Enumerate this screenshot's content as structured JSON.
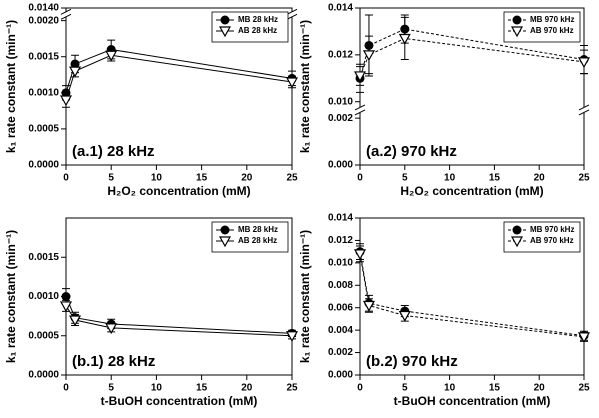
{
  "chart_data": [
    {
      "type": "line",
      "annotation": "(a.1) 28 kHz",
      "x_label": "H₂O₂ concentration (mM)",
      "y_label": "k₁ rate constant (min⁻¹)",
      "x": [
        0,
        1,
        5,
        25
      ],
      "xlim": [
        0,
        25
      ],
      "xticks": [
        0,
        5,
        10,
        15,
        20,
        25
      ],
      "ylim": [
        0,
        0.014
      ],
      "yticks": [
        {
          "value": 0,
          "label": "0.0000"
        },
        {
          "value": 0.0005,
          "label": "0.0005"
        },
        {
          "value": 0.001,
          "label": "0.0010"
        },
        {
          "value": 0.0015,
          "label": "0.0015"
        },
        {
          "value": 0.002,
          "label": "0.0020"
        },
        {
          "value": 0.014,
          "label": "0.0140"
        }
      ],
      "legend": "upper right",
      "line_style": "solid",
      "series": [
        {
          "name": "MB 28 kHz",
          "color": "#000000",
          "marker": "circle",
          "values": [
            0.001,
            0.0014,
            0.0016,
            0.0012
          ],
          "errors": [
            0.0001,
            0.00012,
            0.00013,
            0.0001
          ]
        },
        {
          "name": "AB 28 kHz",
          "color": "#000000",
          "marker": "triangle-down",
          "values": [
            0.0009,
            0.0013,
            0.00152,
            0.00115
          ],
          "errors": [
            0.0001,
            8e-05,
            8e-05,
            8e-05
          ]
        }
      ]
    },
    {
      "type": "line",
      "annotation": "(a.2) 970 kHz",
      "x_label": "H₂O₂ concentration (mM)",
      "y_label": "k₁ rate constant (min⁻¹)",
      "x": [
        0,
        1,
        5,
        25
      ],
      "xlim": [
        0,
        25
      ],
      "xticks": [
        0,
        5,
        10,
        15,
        20,
        25
      ],
      "ylim": [
        0,
        0.014
      ],
      "yticks": [
        {
          "value": 0,
          "label": "0.000"
        },
        {
          "value": 0.002,
          "label": "0.002"
        },
        {
          "value": 0.01,
          "label": "0.010"
        },
        {
          "value": 0.012,
          "label": "0.012"
        },
        {
          "value": 0.014,
          "label": "0.014"
        }
      ],
      "legend": "upper right",
      "line_style": "dashed",
      "series": [
        {
          "name": "MB 970 kHz",
          "color": "#000000",
          "marker": "circle",
          "values": [
            0.011,
            0.0124,
            0.0131,
            0.0118
          ],
          "errors": [
            0.0006,
            0.0013,
            0.0006,
            0.0006
          ]
        },
        {
          "name": "AB 970 kHz",
          "color": "#000000",
          "marker": "triangle-down",
          "values": [
            0.0111,
            0.012,
            0.0127,
            0.0117
          ],
          "errors": [
            0.0004,
            0.0008,
            0.0009,
            0.0005
          ]
        }
      ]
    },
    {
      "type": "line",
      "annotation": "(b.1) 28 kHz",
      "x_label": "t-BuOH concentration (mM)",
      "y_label": "k₁ rate constant (min⁻¹)",
      "x": [
        0,
        1,
        5,
        25
      ],
      "xlim": [
        0,
        25
      ],
      "xticks": [
        0,
        5,
        10,
        15,
        20,
        25
      ],
      "ylim": [
        0,
        0.002
      ],
      "yticks": [
        {
          "value": 0,
          "label": "0.0000"
        },
        {
          "value": 0.0005,
          "label": "0.0005"
        },
        {
          "value": 0.001,
          "label": "0.0010"
        },
        {
          "value": 0.0015,
          "label": "0.0015"
        }
      ],
      "legend": "upper right",
      "line_style": "solid",
      "series": [
        {
          "name": "MB 28 kHz",
          "color": "#000000",
          "marker": "circle",
          "values": [
            0.001,
            0.00073,
            0.00065,
            0.00053
          ],
          "errors": [
            0.0001,
            7e-05,
            6e-05,
            4e-05
          ]
        },
        {
          "name": "AB 28 kHz",
          "color": "#000000",
          "marker": "triangle-down",
          "values": [
            0.00088,
            0.0007,
            0.0006,
            0.0005
          ],
          "errors": [
            7e-05,
            7e-05,
            5e-05,
            4e-05
          ]
        }
      ]
    },
    {
      "type": "line",
      "annotation": "(b.2) 970 kHz",
      "x_label": "t-BuOH concentration (mM)",
      "y_label": "k₁ rate constant (min⁻¹)",
      "x": [
        0,
        1,
        5,
        25
      ],
      "xlim": [
        0,
        25
      ],
      "xticks": [
        0,
        5,
        10,
        15,
        20,
        25
      ],
      "ylim": [
        0,
        0.014
      ],
      "yticks": [
        {
          "value": 0,
          "label": "0.000"
        },
        {
          "value": 0.002,
          "label": "0.002"
        },
        {
          "value": 0.004,
          "label": "0.004"
        },
        {
          "value": 0.006,
          "label": "0.006"
        },
        {
          "value": 0.008,
          "label": "0.008"
        },
        {
          "value": 0.01,
          "label": "0.010"
        },
        {
          "value": 0.012,
          "label": "0.012"
        },
        {
          "value": 0.014,
          "label": "0.014"
        }
      ],
      "legend": "upper right",
      "line_style": "dashed",
      "series": [
        {
          "name": "MB 970 kHz",
          "color": "#000000",
          "marker": "circle",
          "values": [
            0.011,
            0.0064,
            0.0057,
            0.0035
          ],
          "errors": [
            0.0007,
            0.0007,
            0.0005,
            0.0004
          ]
        },
        {
          "name": "AB 970 kHz",
          "color": "#000000",
          "marker": "triangle-down",
          "values": [
            0.0108,
            0.0062,
            0.0053,
            0.0034
          ],
          "errors": [
            0.0007,
            0.0006,
            0.0005,
            0.0004
          ]
        }
      ]
    }
  ]
}
